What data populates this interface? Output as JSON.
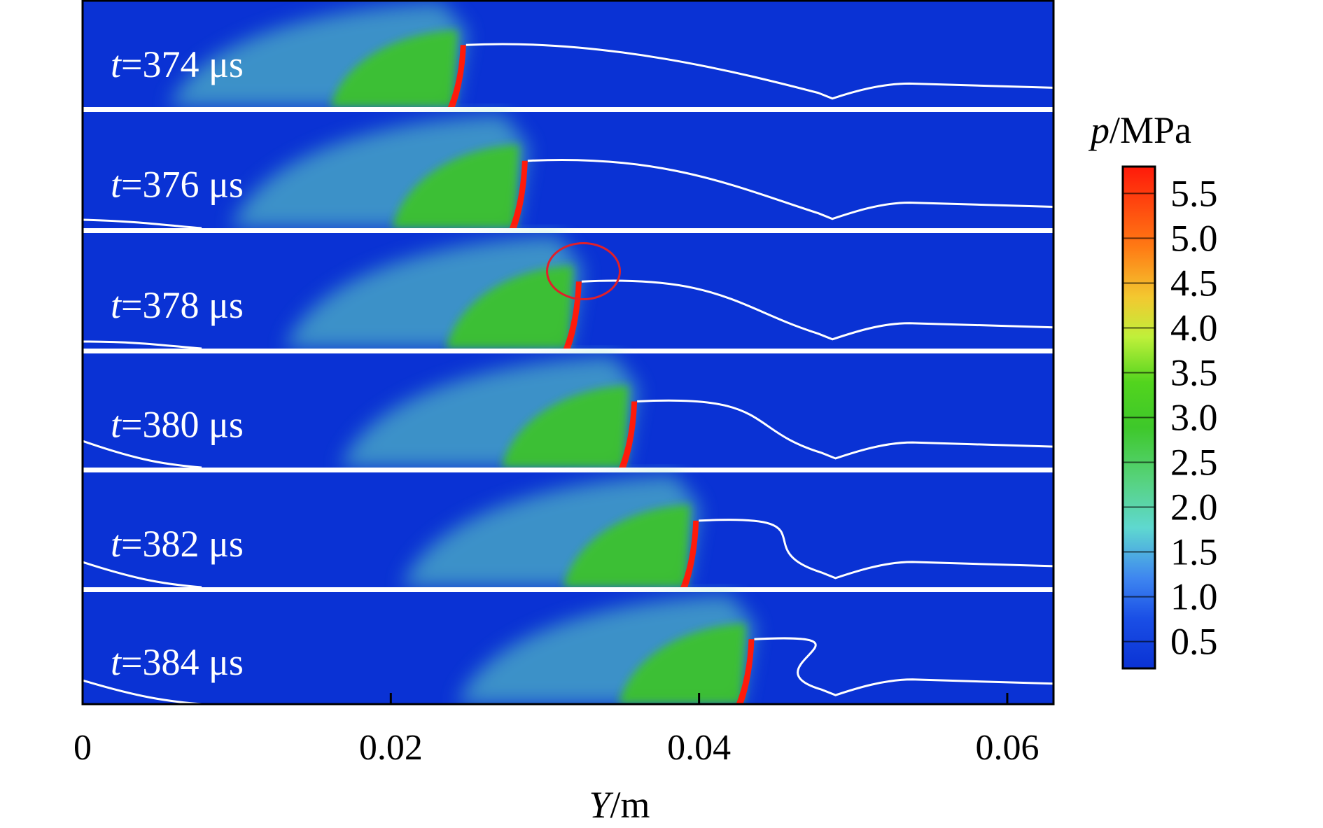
{
  "chart_data": {
    "type": "heatmap",
    "title": "",
    "xlabel": {
      "italic": "Y",
      "rest": "/m"
    },
    "x_ticks": [
      "0",
      "0.02",
      "0.04",
      "0.06"
    ],
    "x_tick_values": [
      0,
      0.02,
      0.04,
      0.06
    ],
    "xlim": [
      0,
      0.063
    ],
    "grid": false,
    "colorbar": {
      "title": {
        "italic": "p",
        "rest": "/MPa"
      },
      "ticks": [
        "0.5",
        "1.0",
        "1.5",
        "2.0",
        "2.5",
        "3.0",
        "3.5",
        "4.0",
        "4.5",
        "5.0",
        "5.5"
      ],
      "tick_values": [
        0.5,
        1.0,
        1.5,
        2.0,
        2.5,
        3.0,
        3.5,
        4.0,
        4.5,
        5.0,
        5.5
      ],
      "range": [
        0.2,
        5.8
      ],
      "placement": "right"
    },
    "panels": [
      {
        "label_italic": "t",
        "label_rest": "=374 μs",
        "front_y": 0.0247,
        "shock_y": 0.0482
      },
      {
        "label_italic": "t",
        "label_rest": "=376 μs",
        "front_y": 0.0287,
        "shock_y": 0.0482
      },
      {
        "label_italic": "t",
        "label_rest": "=378 μs",
        "front_y": 0.0322,
        "shock_y": 0.0482
      },
      {
        "label_italic": "t",
        "label_rest": "=380 μs",
        "front_y": 0.0358,
        "shock_y": 0.0484
      },
      {
        "label_italic": "t",
        "label_rest": "=382 μs",
        "front_y": 0.0398,
        "shock_y": 0.0484
      },
      {
        "label_italic": "t",
        "label_rest": "=384 μs",
        "front_y": 0.0434,
        "shock_y": 0.0484
      }
    ],
    "annotation": {
      "type": "circle",
      "panel": 2,
      "center_y": 0.0325,
      "color": "#e0202a"
    },
    "colors": {
      "background": "#0a32d4",
      "low": "#0a32d4",
      "mid": "#66e0c0",
      "high_green": "#3cc81e",
      "peak": "#ff1a0a",
      "contour": "#ffffff"
    }
  }
}
